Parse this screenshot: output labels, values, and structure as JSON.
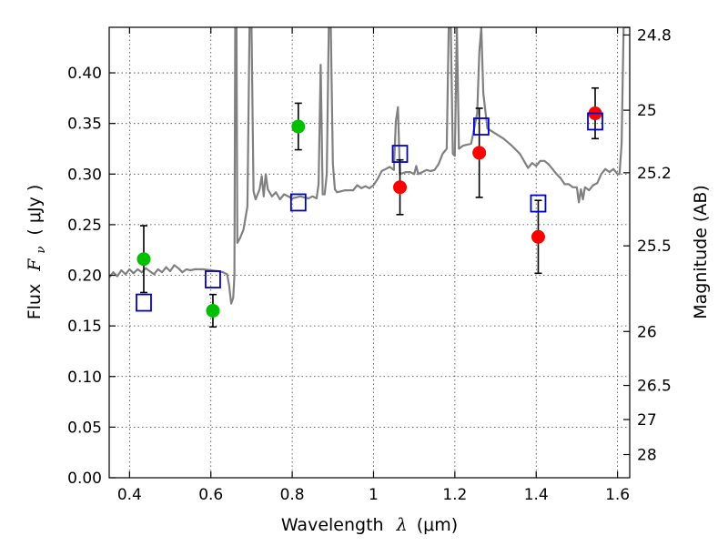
{
  "chart_data": {
    "type": "scatter",
    "title": "",
    "xlabel_text": "Wavelength",
    "xlabel_symbol": "λ",
    "xlabel_unit": "(μm)",
    "ylabel_text": "Flux",
    "ylabel_symbol": "F",
    "ylabel_sub": "ν",
    "ylabel_unit": "( μJy )",
    "y2label": "Magnitude (AB)",
    "xlim": [
      0.35,
      1.63
    ],
    "ylim": [
      0.0,
      0.445
    ],
    "grid": true,
    "x_ticks": [
      0.4,
      0.6,
      0.8,
      1.0,
      1.2,
      1.4,
      1.6
    ],
    "x_tick_labels": [
      "0.4",
      "0.6",
      "0.8",
      "1",
      "1.2",
      "1.4",
      "1.6"
    ],
    "y_ticks": [
      0.0,
      0.05,
      0.1,
      0.15,
      0.2,
      0.25,
      0.3,
      0.35,
      0.4
    ],
    "y_tick_labels": [
      "0.00",
      "0.05",
      "0.10",
      "0.15",
      "0.20",
      "0.25",
      "0.30",
      "0.35",
      "0.40"
    ],
    "y2_ticks": [
      {
        "flux": 0.4374,
        "label": "24.8"
      },
      {
        "flux": 0.3631,
        "label": "25"
      },
      {
        "flux": 0.3013,
        "label": "25.2"
      },
      {
        "flux": 0.2291,
        "label": "25.5"
      },
      {
        "flux": 0.1445,
        "label": "26"
      },
      {
        "flux": 0.0912,
        "label": "26.5"
      },
      {
        "flux": 0.0575,
        "label": "27"
      },
      {
        "flux": 0.0229,
        "label": "28"
      }
    ],
    "series": [
      {
        "kind": "spectrum",
        "color": "#808080",
        "points": [
          [
            0.35,
            0.198
          ],
          [
            0.36,
            0.203
          ],
          [
            0.37,
            0.199
          ],
          [
            0.38,
            0.205
          ],
          [
            0.39,
            0.201
          ],
          [
            0.4,
            0.206
          ],
          [
            0.41,
            0.202
          ],
          [
            0.42,
            0.206
          ],
          [
            0.43,
            0.203
          ],
          [
            0.44,
            0.207
          ],
          [
            0.45,
            0.204
          ],
          [
            0.46,
            0.201
          ],
          [
            0.47,
            0.206
          ],
          [
            0.48,
            0.203
          ],
          [
            0.49,
            0.208
          ],
          [
            0.5,
            0.204
          ],
          [
            0.51,
            0.21
          ],
          [
            0.52,
            0.207
          ],
          [
            0.53,
            0.203
          ],
          [
            0.54,
            0.206
          ],
          [
            0.55,
            0.205
          ],
          [
            0.56,
            0.206
          ],
          [
            0.58,
            0.206
          ],
          [
            0.6,
            0.205
          ],
          [
            0.62,
            0.204
          ],
          [
            0.63,
            0.203
          ],
          [
            0.64,
            0.201
          ],
          [
            0.645,
            0.19
          ],
          [
            0.65,
            0.172
          ],
          [
            0.655,
            0.178
          ],
          [
            0.658,
            0.2
          ],
          [
            0.66,
            0.445
          ],
          [
            0.663,
            0.445
          ],
          [
            0.665,
            0.232
          ],
          [
            0.672,
            0.237
          ],
          [
            0.68,
            0.245
          ],
          [
            0.69,
            0.268
          ],
          [
            0.695,
            0.445
          ],
          [
            0.7,
            0.445
          ],
          [
            0.705,
            0.283
          ],
          [
            0.71,
            0.275
          ],
          [
            0.72,
            0.285
          ],
          [
            0.725,
            0.298
          ],
          [
            0.73,
            0.278
          ],
          [
            0.735,
            0.3
          ],
          [
            0.74,
            0.285
          ],
          [
            0.75,
            0.278
          ],
          [
            0.76,
            0.282
          ],
          [
            0.77,
            0.275
          ],
          [
            0.78,
            0.28
          ],
          [
            0.8,
            0.276
          ],
          [
            0.82,
            0.278
          ],
          [
            0.84,
            0.276
          ],
          [
            0.85,
            0.278
          ],
          [
            0.86,
            0.276
          ],
          [
            0.865,
            0.29
          ],
          [
            0.87,
            0.408
          ],
          [
            0.875,
            0.28
          ],
          [
            0.88,
            0.28
          ],
          [
            0.885,
            0.3
          ],
          [
            0.89,
            0.445
          ],
          [
            0.895,
            0.445
          ],
          [
            0.9,
            0.31
          ],
          [
            0.905,
            0.285
          ],
          [
            0.91,
            0.282
          ],
          [
            0.93,
            0.284
          ],
          [
            0.95,
            0.284
          ],
          [
            0.96,
            0.289
          ],
          [
            0.97,
            0.286
          ],
          [
            0.98,
            0.288
          ],
          [
            0.99,
            0.286
          ],
          [
            1.0,
            0.289
          ],
          [
            1.01,
            0.295
          ],
          [
            1.02,
            0.303
          ],
          [
            1.03,
            0.305
          ],
          [
            1.04,
            0.307
          ],
          [
            1.05,
            0.304
          ],
          [
            1.055,
            0.352
          ],
          [
            1.06,
            0.366
          ],
          [
            1.065,
            0.3
          ],
          [
            1.08,
            0.302
          ],
          [
            1.09,
            0.302
          ],
          [
            1.1,
            0.3
          ],
          [
            1.105,
            0.308
          ],
          [
            1.11,
            0.3
          ],
          [
            1.12,
            0.302
          ],
          [
            1.13,
            0.304
          ],
          [
            1.14,
            0.303
          ],
          [
            1.15,
            0.304
          ],
          [
            1.16,
            0.31
          ],
          [
            1.17,
            0.32
          ],
          [
            1.18,
            0.325
          ],
          [
            1.185,
            0.445
          ],
          [
            1.19,
            0.445
          ],
          [
            1.195,
            0.32
          ],
          [
            1.2,
            0.318
          ],
          [
            1.205,
            0.445
          ],
          [
            1.21,
            0.325
          ],
          [
            1.22,
            0.328
          ],
          [
            1.24,
            0.33
          ],
          [
            1.25,
            0.35
          ],
          [
            1.255,
            0.36
          ],
          [
            1.26,
            0.42
          ],
          [
            1.265,
            0.445
          ],
          [
            1.27,
            0.38
          ],
          [
            1.28,
            0.345
          ],
          [
            1.3,
            0.34
          ],
          [
            1.32,
            0.335
          ],
          [
            1.34,
            0.328
          ],
          [
            1.36,
            0.32
          ],
          [
            1.37,
            0.313
          ],
          [
            1.38,
            0.306
          ],
          [
            1.39,
            0.311
          ],
          [
            1.4,
            0.308
          ],
          [
            1.41,
            0.313
          ],
          [
            1.42,
            0.313
          ],
          [
            1.43,
            0.31
          ],
          [
            1.44,
            0.305
          ],
          [
            1.45,
            0.3
          ],
          [
            1.46,
            0.296
          ],
          [
            1.47,
            0.29
          ],
          [
            1.48,
            0.29
          ],
          [
            1.49,
            0.287
          ],
          [
            1.5,
            0.287
          ],
          [
            1.505,
            0.272
          ],
          [
            1.51,
            0.285
          ],
          [
            1.515,
            0.275
          ],
          [
            1.52,
            0.287
          ],
          [
            1.53,
            0.284
          ],
          [
            1.54,
            0.289
          ],
          [
            1.55,
            0.291
          ],
          [
            1.56,
            0.3
          ],
          [
            1.57,
            0.305
          ],
          [
            1.58,
            0.302
          ],
          [
            1.59,
            0.305
          ],
          [
            1.6,
            0.3
          ],
          [
            1.605,
            0.3
          ],
          [
            1.61,
            0.33
          ],
          [
            1.615,
            0.445
          ],
          [
            1.63,
            0.445
          ]
        ]
      },
      {
        "kind": "markers",
        "name": "green",
        "marker": "filled-circle",
        "color": "#00c000",
        "points": [
          {
            "x": 0.435,
            "y": 0.216,
            "err": 0.033
          },
          {
            "x": 0.605,
            "y": 0.165,
            "err": 0.016
          },
          {
            "x": 0.815,
            "y": 0.347,
            "err": 0.023
          }
        ]
      },
      {
        "kind": "markers",
        "name": "red",
        "marker": "filled-circle",
        "color": "#ff0000",
        "points": [
          {
            "x": 1.065,
            "y": 0.287,
            "err": 0.027
          },
          {
            "x": 1.26,
            "y": 0.321,
            "err": 0.044
          },
          {
            "x": 1.405,
            "y": 0.238,
            "err": 0.036
          },
          {
            "x": 1.545,
            "y": 0.36,
            "err": 0.025
          }
        ]
      },
      {
        "kind": "markers",
        "name": "blue",
        "marker": "open-square",
        "color": "#0000cc",
        "points": [
          {
            "x": 0.435,
            "y": 0.173
          },
          {
            "x": 0.605,
            "y": 0.196
          },
          {
            "x": 0.815,
            "y": 0.272
          },
          {
            "x": 1.065,
            "y": 0.32
          },
          {
            "x": 1.265,
            "y": 0.347
          },
          {
            "x": 1.405,
            "y": 0.271
          },
          {
            "x": 1.545,
            "y": 0.352
          }
        ]
      }
    ]
  }
}
